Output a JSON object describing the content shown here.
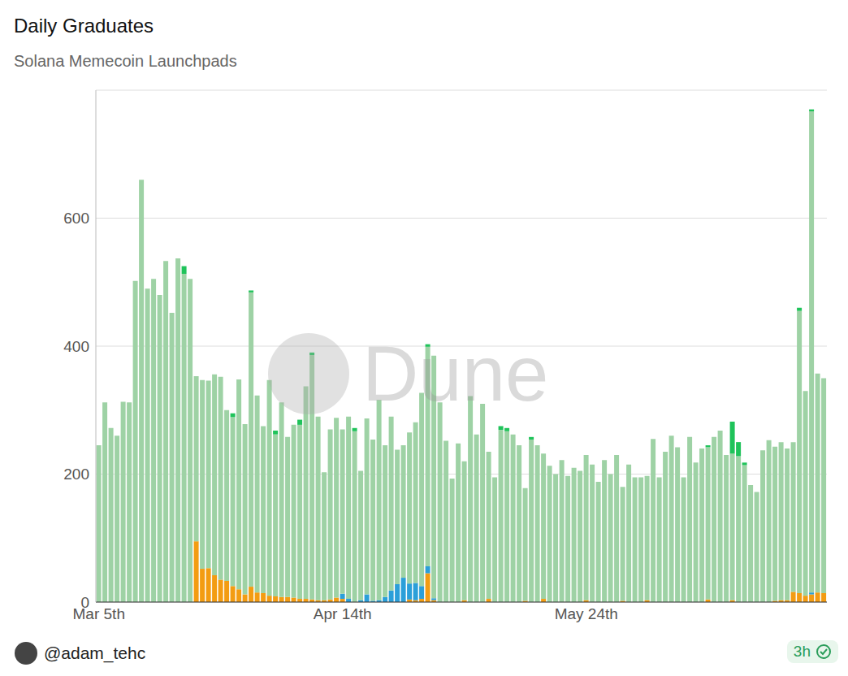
{
  "chart_data": {
    "type": "bar",
    "title": "Daily Graduates",
    "subtitle": "Solana Memecoin Launchpads",
    "watermark": "Dune",
    "source": "@adam_tehc",
    "badge": "3h",
    "stacked": true,
    "grid": true,
    "ylim": [
      0,
      800
    ],
    "yticks": [
      0,
      200,
      400,
      600
    ],
    "categories": [
      "Mar 5th",
      null,
      null,
      null,
      null,
      null,
      null,
      null,
      null,
      null,
      null,
      null,
      null,
      null,
      null,
      null,
      null,
      null,
      null,
      null,
      null,
      null,
      null,
      null,
      null,
      null,
      null,
      null,
      null,
      null,
      null,
      null,
      null,
      null,
      null,
      null,
      null,
      null,
      null,
      null,
      "Apr 14th",
      null,
      null,
      null,
      null,
      null,
      null,
      null,
      null,
      null,
      null,
      null,
      null,
      null,
      null,
      null,
      null,
      null,
      null,
      null,
      null,
      null,
      null,
      null,
      null,
      null,
      null,
      null,
      null,
      null,
      null,
      null,
      null,
      null,
      null,
      null,
      null,
      null,
      null,
      null,
      "May 24th",
      null,
      null,
      null,
      null,
      null,
      null,
      null,
      null,
      null,
      null,
      null,
      null,
      null,
      null,
      null,
      null,
      null,
      null,
      null,
      null,
      null,
      null,
      null,
      null,
      null,
      null,
      null,
      null,
      null,
      null,
      null,
      null,
      null,
      null,
      null,
      null,
      null,
      null,
      null
    ],
    "series": [
      {
        "color": "#f39c12",
        "values": [
          0,
          0,
          0,
          0,
          0,
          0,
          0,
          0,
          0,
          0,
          0,
          0,
          0,
          0,
          0,
          0,
          95,
          52,
          53,
          42,
          35,
          33,
          25,
          20,
          12,
          24,
          15,
          14,
          10,
          9,
          8,
          8,
          7,
          5,
          5,
          4,
          3,
          3,
          4,
          7,
          5,
          0,
          0,
          0,
          0,
          0,
          0,
          0,
          0,
          0,
          0,
          4,
          3,
          5,
          45,
          3,
          0,
          0,
          0,
          0,
          3,
          0,
          0,
          0,
          5,
          0,
          0,
          0,
          0,
          0,
          2,
          0,
          0,
          5,
          0,
          0,
          0,
          0,
          0,
          0,
          3,
          0,
          0,
          0,
          0,
          0,
          2,
          0,
          0,
          0,
          3,
          0,
          0,
          0,
          0,
          0,
          0,
          0,
          0,
          0,
          4,
          0,
          0,
          0,
          3,
          0,
          0,
          0,
          0,
          0,
          0,
          2,
          3,
          3,
          16,
          14,
          10,
          12,
          15,
          14
        ]
      },
      {
        "color": "#2b9fd9",
        "values": [
          0,
          0,
          0,
          0,
          0,
          0,
          0,
          0,
          0,
          0,
          0,
          0,
          0,
          0,
          0,
          0,
          0,
          0,
          0,
          0,
          0,
          0,
          0,
          0,
          0,
          0,
          0,
          0,
          0,
          0,
          0,
          0,
          0,
          0,
          0,
          0,
          0,
          0,
          0,
          0,
          8,
          5,
          0,
          3,
          12,
          2,
          3,
          8,
          18,
          28,
          38,
          25,
          27,
          20,
          11,
          3,
          0,
          0,
          0,
          0,
          0,
          0,
          0,
          0,
          0,
          0,
          0,
          0,
          0,
          0,
          0,
          0,
          0,
          0,
          0,
          0,
          0,
          0,
          0,
          0,
          0,
          0,
          0,
          0,
          0,
          0,
          0,
          0,
          0,
          0,
          0,
          0,
          0,
          0,
          0,
          0,
          0,
          0,
          0,
          0,
          0,
          0,
          0,
          0,
          0,
          0,
          0,
          0,
          0,
          0,
          0,
          0,
          0,
          0,
          0,
          0,
          0,
          3,
          0,
          0
        ]
      },
      {
        "color": "#9ed2a5",
        "values": [
          245,
          312,
          272,
          260,
          313,
          312,
          502,
          660,
          490,
          505,
          480,
          533,
          452,
          537,
          513,
          505,
          258,
          295,
          293,
          314,
          317,
          267,
          264,
          328,
          266,
          460,
          308,
          261,
          337,
          253,
          304,
          250,
          270,
          272,
          332,
          382,
          287,
          200,
          266,
          281,
          257,
          285,
          267,
          202,
          275,
          252,
          313,
          237,
          272,
          210,
          207,
          236,
          251,
          302,
          343,
          379,
          312,
          252,
          193,
          248,
          217,
          322,
          262,
          310,
          230,
          195,
          269,
          267,
          262,
          245,
          176,
          254,
          245,
          227,
          213,
          200,
          222,
          197,
          210,
          205,
          227,
          215,
          188,
          222,
          200,
          230,
          178,
          215,
          195,
          195,
          194,
          255,
          195,
          235,
          260,
          242,
          195,
          258,
          218,
          240,
          238,
          258,
          268,
          230,
          229,
          228,
          214,
          183,
          172,
          237,
          253,
          241,
          247,
          237,
          234,
          441,
          320,
          752,
          342,
          336
        ]
      },
      {
        "color": "#1fc35a",
        "values": [
          0,
          0,
          0,
          0,
          0,
          0,
          0,
          0,
          0,
          0,
          0,
          0,
          0,
          0,
          12,
          0,
          0,
          0,
          0,
          0,
          0,
          0,
          6,
          0,
          0,
          3,
          0,
          0,
          0,
          6,
          0,
          0,
          0,
          8,
          0,
          4,
          0,
          0,
          0,
          0,
          0,
          0,
          5,
          0,
          0,
          0,
          0,
          0,
          0,
          0,
          0,
          0,
          0,
          0,
          4,
          0,
          0,
          0,
          0,
          0,
          0,
          0,
          0,
          0,
          0,
          0,
          6,
          5,
          0,
          0,
          0,
          4,
          0,
          0,
          0,
          0,
          0,
          0,
          0,
          0,
          0,
          0,
          0,
          0,
          0,
          0,
          0,
          0,
          0,
          0,
          0,
          0,
          0,
          0,
          0,
          0,
          0,
          0,
          0,
          0,
          3,
          0,
          0,
          0,
          50,
          22,
          4,
          0,
          0,
          0,
          0,
          0,
          0,
          0,
          0,
          5,
          0,
          3,
          0,
          0
        ]
      }
    ]
  }
}
